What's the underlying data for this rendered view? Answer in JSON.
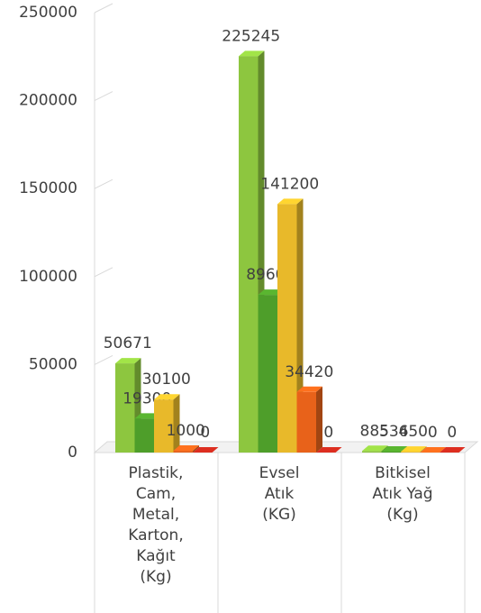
{
  "chart_data": {
    "type": "bar3d",
    "categories": [
      "Plastik,\nCam,\nMetal,\nKarton,\nKağıt\n(Kg)",
      "Evsel\nAtık\n(KG)",
      "Bitkisel\nAtık Yağ\n(Kg)"
    ],
    "series": [
      {
        "color": "#8dc63f",
        "values": [
          50671,
          225245,
          885
        ]
      },
      {
        "color": "#4e9e2a",
        "values": [
          19300,
          89600,
          536
        ]
      },
      {
        "color": "#e8b92a",
        "values": [
          30100,
          141200,
          450
        ]
      },
      {
        "color": "#e8621a",
        "values": [
          1000,
          34420,
          0
        ]
      },
      {
        "color": "#c0281c",
        "values": [
          0,
          0,
          0
        ]
      }
    ],
    "ylim": [
      0,
      250000
    ],
    "yticks": [
      0,
      50000,
      100000,
      150000,
      200000,
      250000
    ],
    "grid": false
  }
}
